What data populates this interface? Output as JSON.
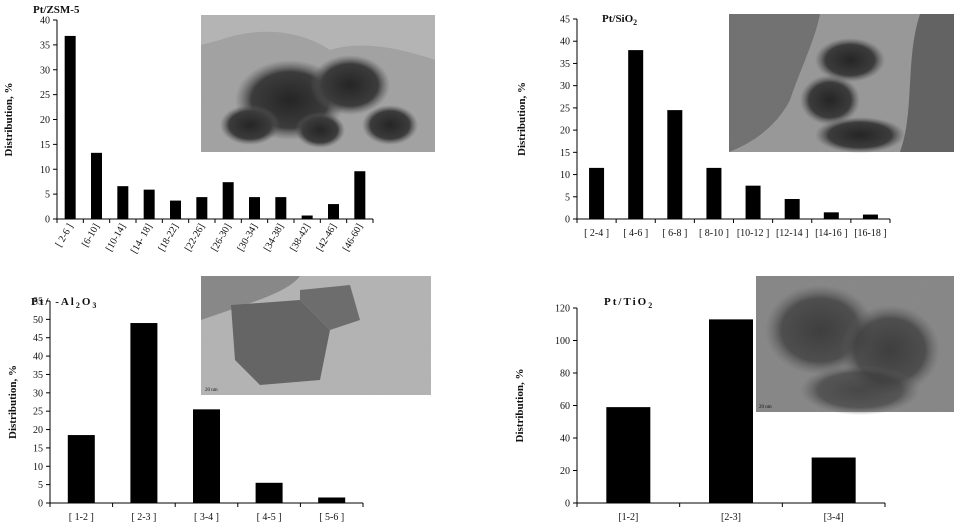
{
  "chart_data": [
    {
      "type": "bar",
      "title": "Pt/ZSM-5",
      "xlabel": "",
      "ylabel": "Distribution, %",
      "ylim": [
        0,
        40
      ],
      "yticks": [
        0,
        5,
        10,
        15,
        20,
        25,
        30,
        35,
        40
      ],
      "categories": [
        "[ 2-6 ]",
        "[6-10]",
        "[10-14]",
        "[14- 18]",
        "[18-22]",
        "[22-26]",
        "[26-30]",
        "[30-34]",
        "[34-38]",
        "[38-42]",
        "[42-46]",
        "[46-60]"
      ],
      "values": [
        36.8,
        13.3,
        6.6,
        5.9,
        3.7,
        4.4,
        7.4,
        4.4,
        4.4,
        0.7,
        3.0,
        9.6
      ],
      "inset": "TEM image"
    },
    {
      "type": "bar",
      "title": "Pt/SiO2",
      "xlabel": "",
      "ylabel": "Distribution, %",
      "ylim": [
        0,
        45
      ],
      "yticks": [
        0,
        5,
        10,
        15,
        20,
        25,
        30,
        35,
        40,
        45
      ],
      "categories": [
        "[ 2-4 ]",
        "[ 4-6 ]",
        "[ 6-8 ]",
        "[ 8-10 ]",
        "[10-12 ]",
        "[12-14 ]",
        "[14-16 ]",
        "[16-18 ]"
      ],
      "values": [
        11.5,
        38,
        24.5,
        11.5,
        7.5,
        4.5,
        1.5,
        1.0
      ],
      "inset": "TEM image"
    },
    {
      "type": "bar",
      "title": "Pt/ -Al2O3",
      "xlabel": "",
      "ylabel": "Distribution, %",
      "ylim": [
        0,
        55
      ],
      "yticks": [
        0,
        5,
        10,
        15,
        20,
        25,
        30,
        35,
        40,
        45,
        50,
        55
      ],
      "categories": [
        "[ 1-2 ]",
        "[ 2-3 ]",
        "[ 3-4 ]",
        "[ 4-5 ]",
        "[ 5-6 ]"
      ],
      "values": [
        18.5,
        49,
        25.5,
        5.5,
        1.5
      ],
      "inset": "TEM image",
      "inset_scale": "20 nm"
    },
    {
      "type": "bar",
      "title": "Pt/TiO2",
      "xlabel": "",
      "ylabel": "Distribution, %",
      "ylim": [
        0,
        120
      ],
      "yticks": [
        0,
        20,
        40,
        60,
        80,
        100,
        120
      ],
      "categories": [
        "[1-2]",
        "[2-3]",
        "[3-4]"
      ],
      "values": [
        59,
        113,
        28
      ],
      "inset": "TEM image",
      "inset_scale": "20 nm"
    }
  ],
  "titles": {
    "p1": {
      "a": "Pt/ZSM-5"
    },
    "p2": {
      "a": "Pt/SiO",
      "sub": "2"
    },
    "p3": {
      "a": "Pt/ -Al",
      "sub1": "2",
      "b": "O",
      "sub2": "3"
    },
    "p4": {
      "a": "Pt/TiO",
      "sub": "2"
    }
  },
  "colors": {
    "bar": "#000000",
    "axis": "#000000",
    "inset_bg": "#9a9a9a"
  }
}
